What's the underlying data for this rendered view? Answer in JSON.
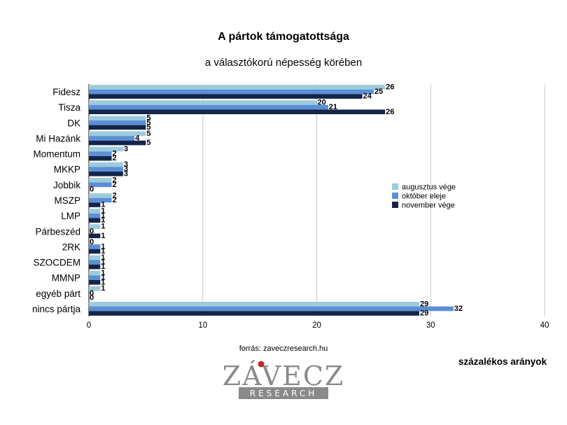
{
  "chart_data": {
    "type": "bar",
    "orientation": "horizontal",
    "title": "A pártok támogatottsága",
    "subtitle": "a választókorú népesség körében",
    "categories": [
      "Fidesz",
      "Tisza",
      "DK",
      "Mi Hazánk",
      "Momentum",
      "MKKP",
      "Jobbik",
      "MSZP",
      "LMP",
      "Párbeszéd",
      "2RK",
      "SZOCDEM",
      "MMNP",
      "egyéb párt",
      "nincs pártja"
    ],
    "series": [
      {
        "name": "augusztus vége",
        "color": "#9ccbdc",
        "values": [
          26,
          20,
          5,
          5,
          3,
          3,
          2,
          2,
          1,
          1,
          0,
          1,
          1,
          1,
          29
        ]
      },
      {
        "name": "október eleje",
        "color": "#5b8fd6",
        "values": [
          25,
          21,
          5,
          4,
          2,
          3,
          2,
          2,
          1,
          0,
          1,
          1,
          1,
          0,
          32
        ]
      },
      {
        "name": "november vége",
        "color": "#14254a",
        "values": [
          24,
          26,
          5,
          5,
          2,
          3,
          0,
          1,
          1,
          1,
          1,
          1,
          1,
          0,
          29
        ]
      }
    ],
    "xlim": [
      0,
      40
    ],
    "xticks": [
      "0",
      "10",
      "20",
      "30",
      "40"
    ],
    "grid": true,
    "legend_position": "right",
    "xlabel": "százalékos arányok"
  },
  "source": "forrás: zaveczresearch.hu",
  "logo": {
    "name": "ZÁVECZ",
    "tagline": "RESEARCH",
    "accent": "#c0272d"
  }
}
